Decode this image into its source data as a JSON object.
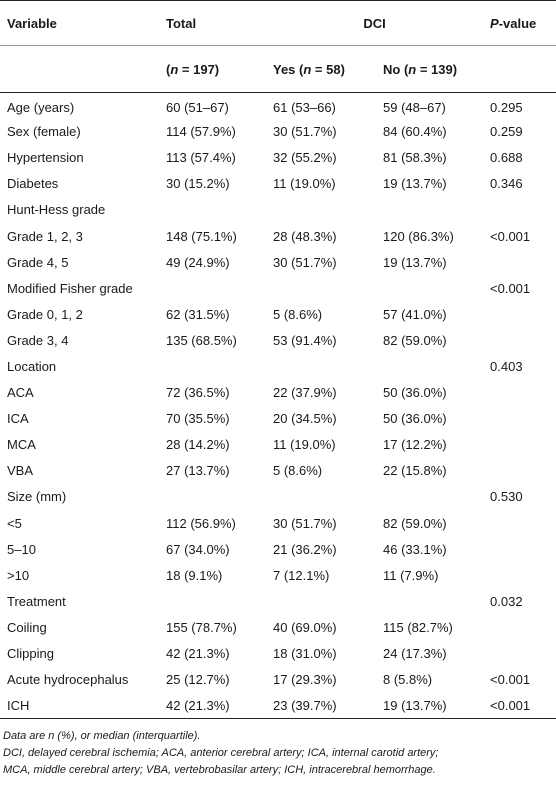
{
  "header": {
    "variable": "Variable",
    "total": "Total",
    "dci": "DCI",
    "pvalue_italic": "P",
    "pvalue_rest": "-value",
    "sub": {
      "total": {
        "open": "(",
        "n": "n",
        "rest": " = 197)"
      },
      "yes": {
        "pre": "Yes (",
        "n": "n",
        "rest": " = 58)"
      },
      "no": {
        "pre": "No (",
        "n": "n",
        "rest": " = 139)"
      }
    }
  },
  "rows": [
    [
      "Age (years)",
      "60 (51–67)",
      "61 (53–66)",
      "59 (48–67)",
      "0.295"
    ],
    [
      "Sex (female)",
      "114 (57.9%)",
      "30 (51.7%)",
      "84 (60.4%)",
      "0.259"
    ],
    [
      "Hypertension",
      "113 (57.4%)",
      "32 (55.2%)",
      "81 (58.3%)",
      "0.688"
    ],
    [
      "Diabetes",
      "30 (15.2%)",
      "11 (19.0%)",
      "19 (13.7%)",
      "0.346"
    ],
    [
      "Hunt-Hess grade",
      "",
      "",
      "",
      ""
    ],
    [
      "Grade 1, 2, 3",
      "148 (75.1%)",
      "28 (48.3%)",
      "120 (86.3%)",
      "<0.001"
    ],
    [
      "Grade 4, 5",
      "49 (24.9%)",
      "30 (51.7%)",
      "19 (13.7%)",
      ""
    ],
    [
      "Modified Fisher grade",
      "",
      "",
      "",
      "<0.001"
    ],
    [
      "Grade 0, 1, 2",
      "62 (31.5%)",
      "5 (8.6%)",
      "57 (41.0%)",
      ""
    ],
    [
      "Grade 3, 4",
      "135 (68.5%)",
      "53 (91.4%)",
      "82 (59.0%)",
      ""
    ],
    [
      "Location",
      "",
      "",
      "",
      "0.403"
    ],
    [
      "ACA",
      "72 (36.5%)",
      "22 (37.9%)",
      "50 (36.0%)",
      ""
    ],
    [
      "ICA",
      "70 (35.5%)",
      "20 (34.5%)",
      "50 (36.0%)",
      ""
    ],
    [
      "MCA",
      "28 (14.2%)",
      "11 (19.0%)",
      "17 (12.2%)",
      ""
    ],
    [
      "VBA",
      "27 (13.7%)",
      "5 (8.6%)",
      "22 (15.8%)",
      ""
    ],
    [
      "Size (mm)",
      "",
      "",
      "",
      "0.530"
    ],
    [
      "<5",
      "112 (56.9%)",
      "30 (51.7%)",
      "82 (59.0%)",
      ""
    ],
    [
      "5–10",
      "67 (34.0%)",
      "21 (36.2%)",
      "46 (33.1%)",
      ""
    ],
    [
      ">10",
      "18 (9.1%)",
      "7 (12.1%)",
      "11 (7.9%)",
      ""
    ],
    [
      "Treatment",
      "",
      "",
      "",
      "0.032"
    ],
    [
      "Coiling",
      "155 (78.7%)",
      "40 (69.0%)",
      "115 (82.7%)",
      ""
    ],
    [
      "Clipping",
      "42 (21.3%)",
      "18 (31.0%)",
      "24 (17.3%)",
      ""
    ],
    [
      "Acute hydrocephalus",
      "25 (12.7%)",
      "17 (29.3%)",
      "8 (5.8%)",
      "<0.001"
    ],
    [
      "ICH",
      "42 (21.3%)",
      "23 (39.7%)",
      "19 (13.7%)",
      "<0.001"
    ]
  ],
  "footnotes": [
    "Data are n (%), or median (interquartile).",
    "DCI, delayed cerebral ischemia; ACA, anterior cerebral artery; ICA, internal carotid artery;",
    "MCA, middle cerebral artery; VBA, vertebrobasilar artery; ICH, intracerebral hemorrhage."
  ]
}
